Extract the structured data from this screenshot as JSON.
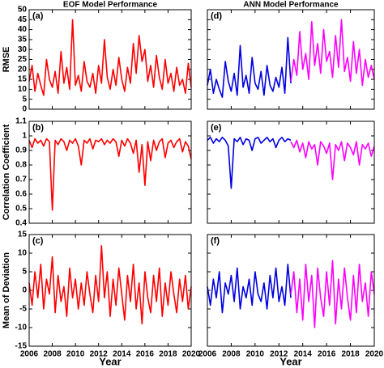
{
  "chart_data": [
    {
      "type": "line",
      "label": "(a)",
      "title": "EOF Model Performance",
      "title_color": "#ff00ff",
      "ylabel": "RMSE",
      "xlim": [
        2006,
        2020
      ],
      "ylim": [
        0,
        50
      ],
      "yticks": [
        0,
        5,
        10,
        15,
        20,
        25,
        30,
        35,
        40,
        45,
        50
      ],
      "xticks": [
        2006,
        2008,
        2010,
        2012,
        2014,
        2016,
        2018,
        2020
      ],
      "xtick_labels": false,
      "series": [
        {
          "color": "#ff0000",
          "x": [
            2006,
            2006.25,
            2006.5,
            2006.75,
            2007,
            2007.25,
            2007.5,
            2007.75,
            2008,
            2008.25,
            2008.5,
            2008.75,
            2009,
            2009.25,
            2009.5,
            2009.75,
            2010,
            2010.25,
            2010.5,
            2010.75,
            2011,
            2011.25,
            2011.5,
            2011.75,
            2012,
            2012.25,
            2012.5,
            2012.75,
            2013,
            2013.25,
            2013.5,
            2013.75,
            2014,
            2014.25,
            2014.5,
            2014.75,
            2015,
            2015.25,
            2015.5,
            2015.75,
            2016,
            2016.25,
            2016.5,
            2016.75,
            2017,
            2017.25,
            2017.5,
            2017.75,
            2018,
            2018.25,
            2018.5,
            2018.75,
            2019,
            2019.25,
            2019.5,
            2019.75,
            2020
          ],
          "values": [
            14,
            22,
            9,
            18,
            12,
            7,
            25,
            15,
            11,
            19,
            8,
            29,
            13,
            21,
            10,
            45,
            12,
            17,
            9,
            24,
            14,
            11,
            18,
            8,
            22,
            13,
            35,
            16,
            10,
            20,
            12,
            26,
            15,
            9,
            21,
            13,
            33,
            18,
            37,
            24,
            30,
            14,
            22,
            11,
            27,
            16,
            10,
            25,
            13,
            18,
            9,
            21,
            12,
            15,
            8,
            23,
            11
          ]
        }
      ]
    },
    {
      "type": "line",
      "label": "(b)",
      "ylabel": "Correlation Coefficient",
      "xlim": [
        2006,
        2020
      ],
      "ylim": [
        0.4,
        1.1
      ],
      "yticks": [
        0.4,
        0.5,
        0.6,
        0.7,
        0.8,
        0.9,
        1,
        1.1
      ],
      "xticks": [
        2006,
        2008,
        2010,
        2012,
        2014,
        2016,
        2018,
        2020
      ],
      "xtick_labels": false,
      "series": [
        {
          "color": "#ff0000",
          "x": [
            2006,
            2006.25,
            2006.5,
            2006.75,
            2007,
            2007.25,
            2007.5,
            2007.75,
            2008,
            2008.25,
            2008.5,
            2008.75,
            2009,
            2009.25,
            2009.5,
            2009.75,
            2010,
            2010.25,
            2010.5,
            2010.75,
            2011,
            2011.25,
            2011.5,
            2011.75,
            2012,
            2012.25,
            2012.5,
            2012.75,
            2013,
            2013.25,
            2013.5,
            2013.75,
            2014,
            2014.25,
            2014.5,
            2014.75,
            2015,
            2015.25,
            2015.5,
            2015.75,
            2016,
            2016.25,
            2016.5,
            2016.75,
            2017,
            2017.25,
            2017.5,
            2017.75,
            2018,
            2018.25,
            2018.5,
            2018.75,
            2019,
            2019.25,
            2019.5,
            2019.75,
            2020
          ],
          "values": [
            0.97,
            0.92,
            0.98,
            0.95,
            0.97,
            0.93,
            0.98,
            0.96,
            0.49,
            0.97,
            0.94,
            0.98,
            0.96,
            0.9,
            0.97,
            0.95,
            0.98,
            0.93,
            0.8,
            0.97,
            0.95,
            0.98,
            0.91,
            0.97,
            0.96,
            0.98,
            0.94,
            0.97,
            0.95,
            0.98,
            0.96,
            0.86,
            0.97,
            0.93,
            0.98,
            0.95,
            0.88,
            0.97,
            0.75,
            0.94,
            0.66,
            0.96,
            0.83,
            0.97,
            0.9,
            0.96,
            0.98,
            0.85,
            0.95,
            0.97,
            0.92,
            0.96,
            0.98,
            0.89,
            0.96,
            0.93,
            0.84
          ]
        }
      ]
    },
    {
      "type": "line",
      "label": "(c)",
      "ylabel": "Mean of Deviation",
      "xlabel": "Year",
      "xlim": [
        2006,
        2020
      ],
      "ylim": [
        -15,
        15
      ],
      "yticks": [
        -15,
        -10,
        -5,
        0,
        5,
        10,
        15
      ],
      "xticks": [
        2006,
        2008,
        2010,
        2012,
        2014,
        2016,
        2018,
        2020
      ],
      "series": [
        {
          "color": "#ff0000",
          "x": [
            2006,
            2006.25,
            2006.5,
            2006.75,
            2007,
            2007.25,
            2007.5,
            2007.75,
            2008,
            2008.25,
            2008.5,
            2008.75,
            2009,
            2009.25,
            2009.5,
            2009.75,
            2010,
            2010.25,
            2010.5,
            2010.75,
            2011,
            2011.25,
            2011.5,
            2011.75,
            2012,
            2012.25,
            2012.5,
            2012.75,
            2013,
            2013.25,
            2013.5,
            2013.75,
            2014,
            2014.25,
            2014.5,
            2014.75,
            2015,
            2015.25,
            2015.5,
            2015.75,
            2016,
            2016.25,
            2016.5,
            2016.75,
            2017,
            2017.25,
            2017.5,
            2017.75,
            2018,
            2018.25,
            2018.5,
            2018.75,
            2019,
            2019.25,
            2019.5,
            2019.75,
            2020
          ],
          "values": [
            2,
            -4,
            5,
            -2,
            7,
            -5,
            3,
            -1,
            9,
            -6,
            4,
            -3,
            1,
            -7,
            6,
            -2,
            3,
            -5,
            2,
            -4,
            5,
            -1,
            -6,
            4,
            -3,
            12,
            -2,
            5,
            -7,
            3,
            -4,
            6,
            -1,
            -8,
            4,
            -3,
            7,
            -5,
            2,
            -9,
            5,
            -2,
            -6,
            4,
            -3,
            6,
            -7,
            2,
            -4,
            5,
            -1,
            -6,
            3,
            -3,
            4,
            -5,
            1
          ]
        }
      ]
    },
    {
      "type": "line",
      "label": "(d)",
      "title": "ANN Model Performance",
      "title_color": "#ff00ff",
      "xlim": [
        2006,
        2020
      ],
      "ylim": [
        0,
        50
      ],
      "yticks": [
        0,
        5,
        10,
        15,
        20,
        25,
        30,
        35,
        40,
        45,
        50
      ],
      "ytick_labels": false,
      "xticks": [
        2006,
        2008,
        2010,
        2012,
        2014,
        2016,
        2018,
        2020
      ],
      "xtick_labels": false,
      "series": [
        {
          "color": "#0000e0",
          "x": [
            2006,
            2006.25,
            2006.5,
            2006.75,
            2007,
            2007.25,
            2007.5,
            2007.75,
            2008,
            2008.25,
            2008.5,
            2008.75,
            2009,
            2009.25,
            2009.5,
            2009.75,
            2010,
            2010.25,
            2010.5,
            2010.75,
            2011,
            2011.25,
            2011.5,
            2011.75,
            2012,
            2012.25,
            2012.5,
            2012.75,
            2013
          ],
          "values": [
            12,
            20,
            8,
            15,
            10,
            6,
            24,
            14,
            9,
            18,
            7,
            32,
            11,
            17,
            8,
            26,
            13,
            10,
            19,
            7,
            22,
            12,
            9,
            16,
            11,
            21,
            8,
            36,
            13
          ]
        },
        {
          "color": "#ff00ff",
          "x": [
            2013,
            2013.25,
            2013.5,
            2013.75,
            2014,
            2014.25,
            2014.5,
            2014.75,
            2015,
            2015.25,
            2015.5,
            2015.75,
            2016,
            2016.25,
            2016.5,
            2016.75,
            2017,
            2017.25,
            2017.5,
            2017.75,
            2018,
            2018.25,
            2018.5,
            2018.75,
            2019,
            2019.25,
            2019.5,
            2019.75,
            2020
          ],
          "values": [
            14,
            25,
            17,
            39,
            20,
            28,
            15,
            44,
            22,
            33,
            18,
            40,
            24,
            29,
            16,
            37,
            21,
            45,
            19,
            26,
            14,
            34,
            18,
            30,
            12,
            25,
            16,
            22,
            15
          ]
        }
      ]
    },
    {
      "type": "line",
      "label": "(e)",
      "xlim": [
        2006,
        2020
      ],
      "ylim": [
        0.4,
        1.1
      ],
      "yticks": [
        0.4,
        0.5,
        0.6,
        0.7,
        0.8,
        0.9,
        1,
        1.1
      ],
      "ytick_labels": false,
      "xticks": [
        2006,
        2008,
        2010,
        2012,
        2014,
        2016,
        2018,
        2020
      ],
      "xtick_labels": false,
      "series": [
        {
          "color": "#0000e0",
          "x": [
            2006,
            2006.25,
            2006.5,
            2006.75,
            2007,
            2007.25,
            2007.5,
            2007.75,
            2008,
            2008.25,
            2008.5,
            2008.75,
            2009,
            2009.25,
            2009.5,
            2009.75,
            2010,
            2010.25,
            2010.5,
            2010.75,
            2011,
            2011.25,
            2011.5,
            2011.75,
            2012,
            2012.25,
            2012.5,
            2012.75,
            2013
          ],
          "values": [
            0.97,
            0.99,
            0.95,
            0.98,
            0.96,
            0.99,
            0.97,
            0.93,
            0.64,
            0.98,
            0.96,
            0.99,
            0.94,
            0.98,
            0.97,
            0.9,
            0.98,
            0.99,
            0.95,
            0.97,
            0.99,
            0.96,
            0.98,
            0.92,
            0.97,
            0.99,
            0.96,
            0.98,
            0.97
          ]
        },
        {
          "color": "#ff00ff",
          "x": [
            2013,
            2013.25,
            2013.5,
            2013.75,
            2014,
            2014.25,
            2014.5,
            2014.75,
            2015,
            2015.25,
            2015.5,
            2015.75,
            2016,
            2016.25,
            2016.5,
            2016.75,
            2017,
            2017.25,
            2017.5,
            2017.75,
            2018,
            2018.25,
            2018.5,
            2018.75,
            2019,
            2019.25,
            2019.5,
            2019.75,
            2020
          ],
          "values": [
            0.96,
            0.92,
            0.97,
            0.89,
            0.95,
            0.85,
            0.96,
            0.91,
            0.94,
            0.8,
            0.96,
            0.93,
            0.88,
            0.95,
            0.7,
            0.94,
            0.9,
            0.96,
            0.83,
            0.95,
            0.92,
            0.87,
            0.96,
            0.8,
            0.94,
            0.91,
            0.95,
            0.86,
            0.93
          ]
        }
      ]
    },
    {
      "type": "line",
      "label": "(f)",
      "xlabel": "Year",
      "xlim": [
        2006,
        2020
      ],
      "ylim": [
        -15,
        15
      ],
      "yticks": [
        -15,
        -10,
        -5,
        0,
        5,
        10,
        15
      ],
      "ytick_labels": false,
      "xticks": [
        2006,
        2008,
        2010,
        2012,
        2014,
        2016,
        2018,
        2020
      ],
      "series": [
        {
          "color": "#0000e0",
          "x": [
            2006,
            2006.25,
            2006.5,
            2006.75,
            2007,
            2007.25,
            2007.5,
            2007.75,
            2008,
            2008.25,
            2008.5,
            2008.75,
            2009,
            2009.25,
            2009.5,
            2009.75,
            2010,
            2010.25,
            2010.5,
            2010.75,
            2011,
            2011.25,
            2011.5,
            2011.75,
            2012,
            2012.25,
            2012.5,
            2012.75,
            2013
          ],
          "values": [
            1,
            -4,
            3,
            -2,
            5,
            -6,
            2,
            -1,
            4,
            -3,
            6,
            -5,
            1,
            -2,
            3,
            -4,
            5,
            -1,
            -3,
            2,
            -5,
            4,
            -2,
            6,
            -3,
            1,
            -4,
            7,
            -2
          ]
        },
        {
          "color": "#ff00ff",
          "x": [
            2013,
            2013.25,
            2013.5,
            2013.75,
            2014,
            2014.25,
            2014.5,
            2014.75,
            2015,
            2015.25,
            2015.5,
            2015.75,
            2016,
            2016.25,
            2016.5,
            2016.75,
            2017,
            2017.25,
            2017.5,
            2017.75,
            2018,
            2018.25,
            2018.5,
            2018.75,
            2019,
            2019.25,
            2019.5,
            2019.75,
            2020
          ],
          "values": [
            -1,
            5,
            -6,
            3,
            -8,
            7,
            -3,
            4,
            -10,
            6,
            -2,
            -7,
            5,
            -4,
            8,
            -9,
            3,
            -5,
            6,
            -2,
            -8,
            4,
            -6,
            7,
            -3,
            2,
            -7,
            5,
            -1
          ]
        }
      ]
    }
  ]
}
